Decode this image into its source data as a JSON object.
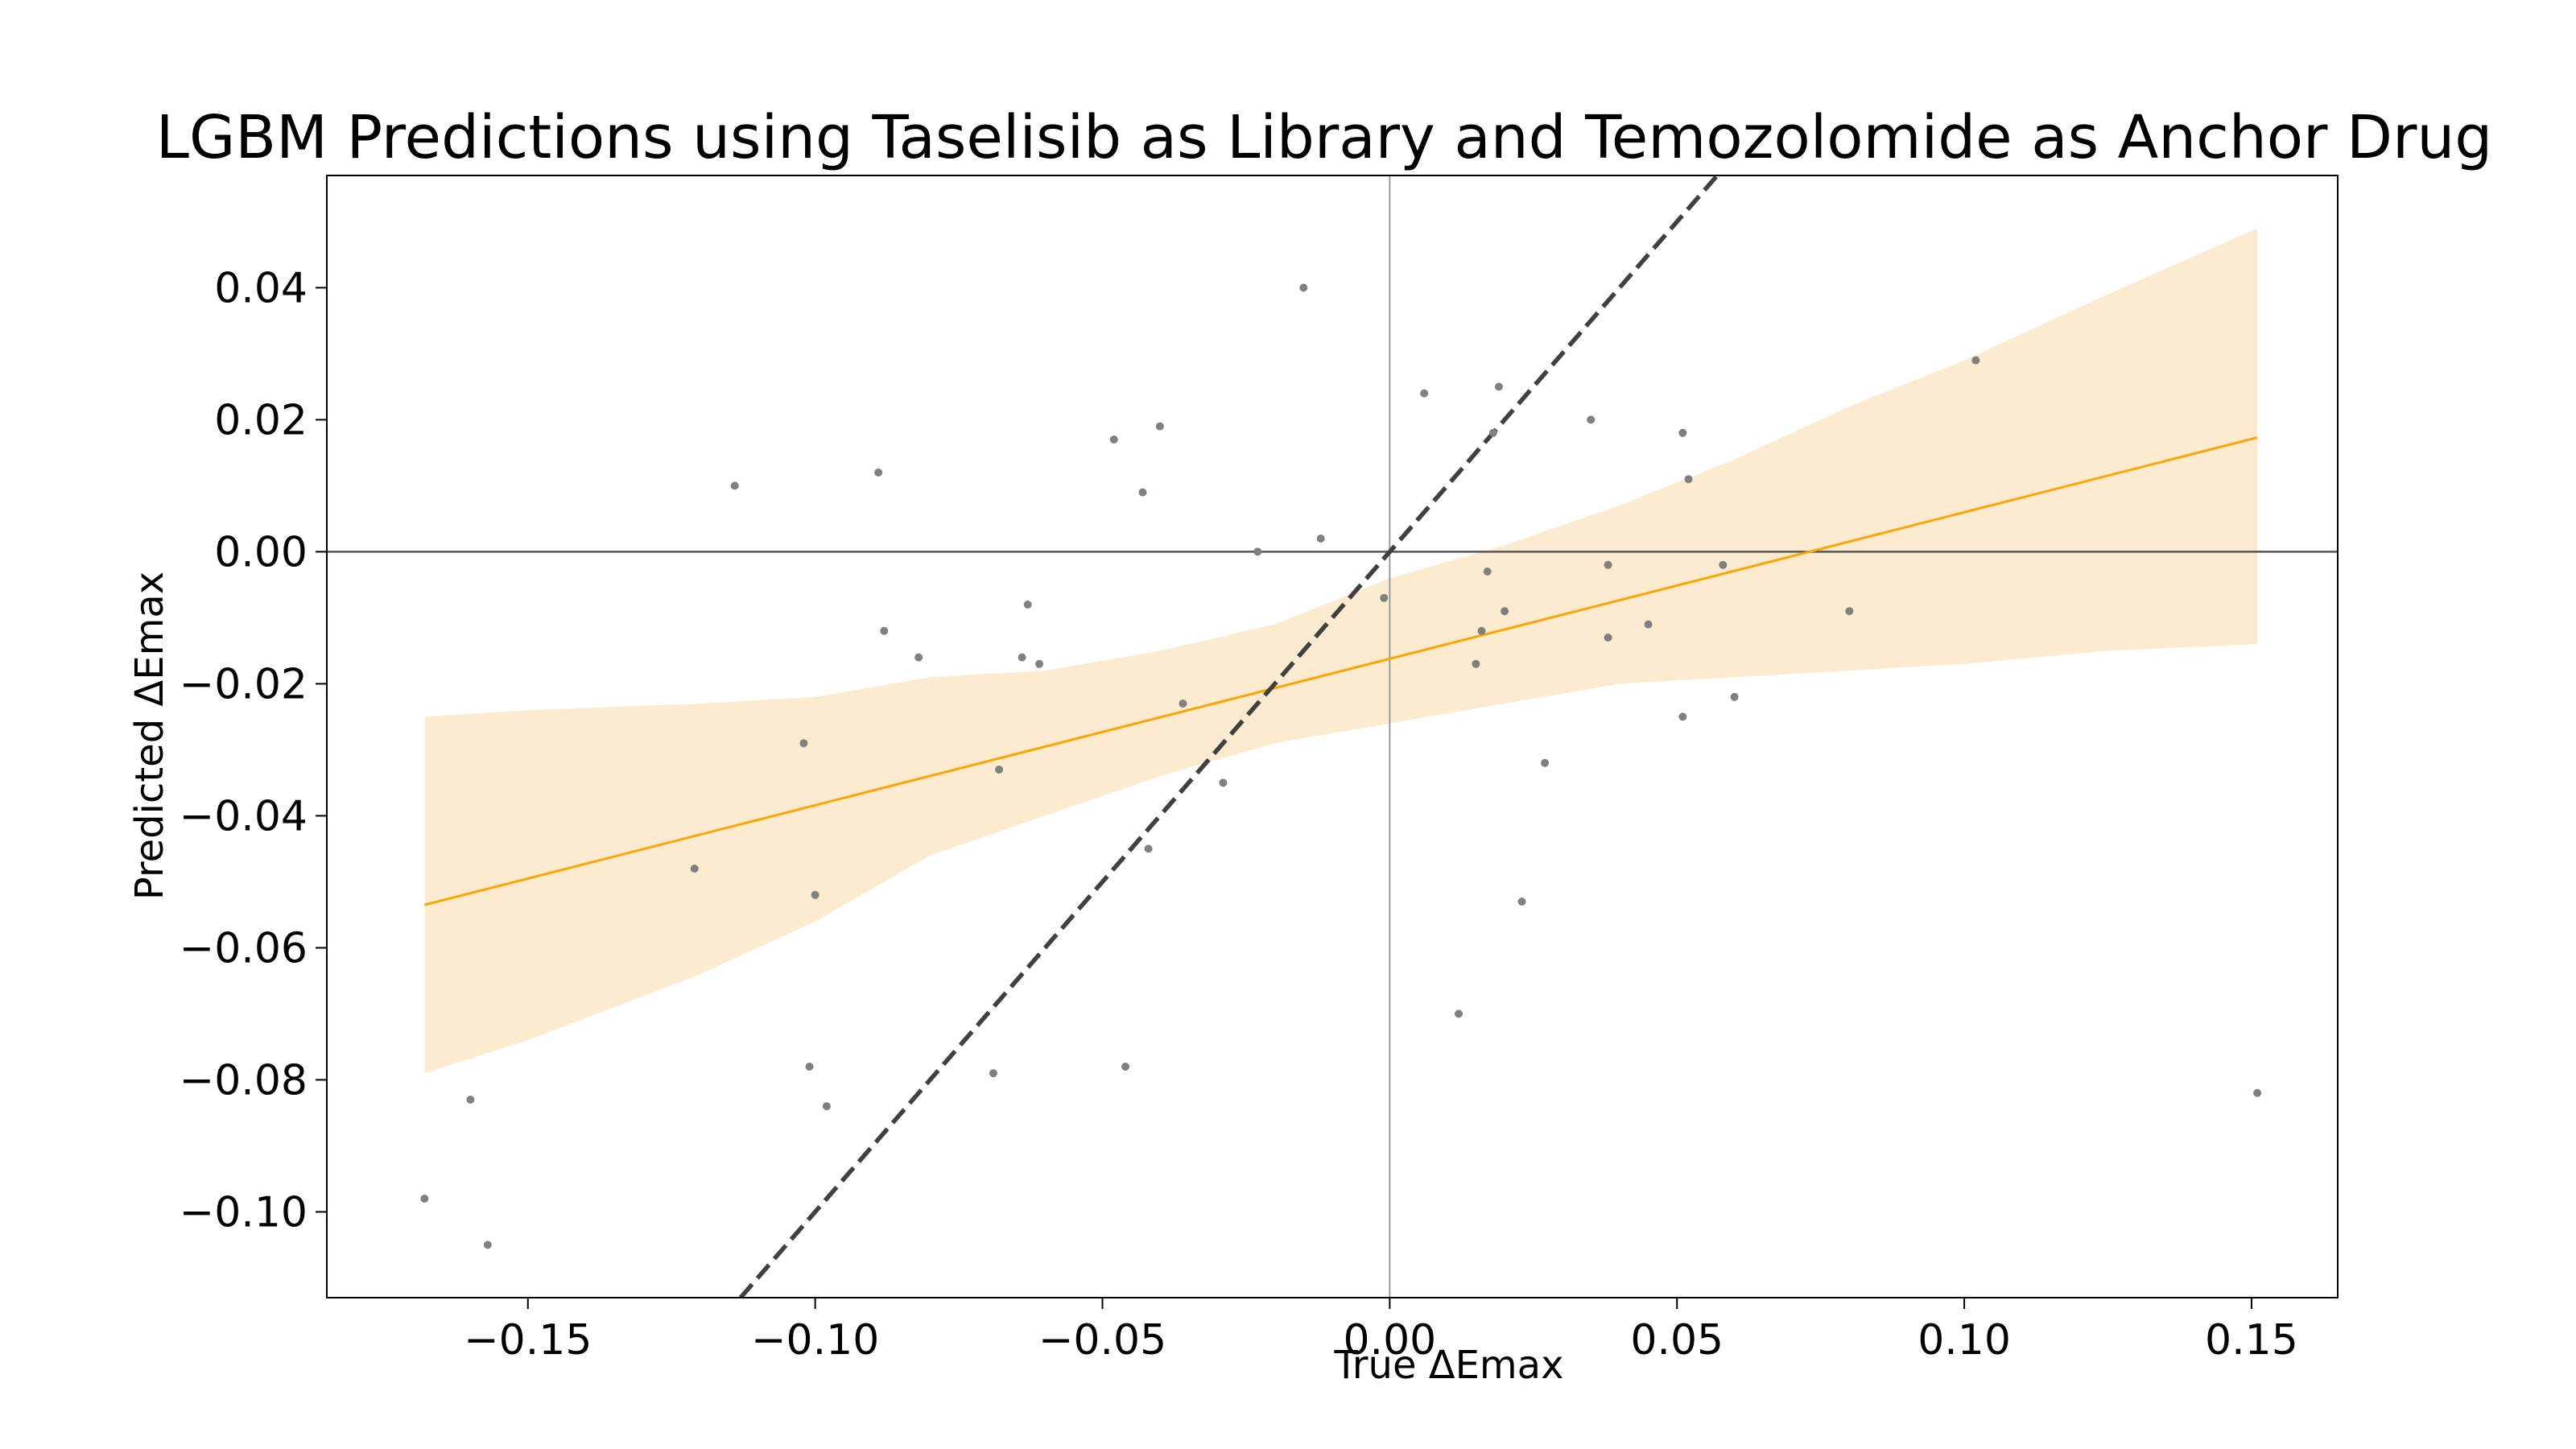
{
  "chart_data": {
    "type": "scatter",
    "title": "LGBM Predictions using Taselisib as Library and Temozolomide as Anchor Drug",
    "xlabel": "True ΔEmax",
    "ylabel": "Predicted ΔEmax",
    "xlim": [
      -0.185,
      0.165
    ],
    "ylim": [
      -0.113,
      0.057
    ],
    "x_ticks": [
      -0.15,
      -0.1,
      -0.05,
      0.0,
      0.05,
      0.1,
      0.15
    ],
    "x_tick_labels": [
      "−0.15",
      "−0.10",
      "−0.05",
      "0.00",
      "0.05",
      "0.10",
      "0.15"
    ],
    "y_ticks": [
      -0.1,
      -0.08,
      -0.06,
      -0.04,
      -0.02,
      0.0,
      0.02,
      0.04
    ],
    "y_tick_labels": [
      "−0.10",
      "−0.08",
      "−0.06",
      "−0.04",
      "−0.02",
      "0.00",
      "0.02",
      "0.04"
    ],
    "grid": false,
    "legend": "none",
    "colors": {
      "points": "#808080",
      "regression_line": "#ffa500",
      "confidence_band": "#fdebd0",
      "identity_line": "#404040",
      "zero_lines": "#555555"
    },
    "points": [
      {
        "x": -0.168,
        "y": -0.098
      },
      {
        "x": -0.16,
        "y": -0.083
      },
      {
        "x": -0.157,
        "y": -0.105
      },
      {
        "x": -0.121,
        "y": -0.048
      },
      {
        "x": -0.114,
        "y": 0.01
      },
      {
        "x": -0.102,
        "y": -0.029
      },
      {
        "x": -0.101,
        "y": -0.078
      },
      {
        "x": -0.1,
        "y": -0.052
      },
      {
        "x": -0.098,
        "y": -0.084
      },
      {
        "x": -0.089,
        "y": 0.012
      },
      {
        "x": -0.088,
        "y": -0.012
      },
      {
        "x": -0.082,
        "y": -0.016
      },
      {
        "x": -0.069,
        "y": -0.079
      },
      {
        "x": -0.068,
        "y": -0.033
      },
      {
        "x": -0.064,
        "y": -0.016
      },
      {
        "x": -0.063,
        "y": -0.008
      },
      {
        "x": -0.061,
        "y": -0.017
      },
      {
        "x": -0.048,
        "y": 0.017
      },
      {
        "x": -0.046,
        "y": -0.078
      },
      {
        "x": -0.043,
        "y": 0.009
      },
      {
        "x": -0.042,
        "y": -0.045
      },
      {
        "x": -0.04,
        "y": 0.019
      },
      {
        "x": -0.036,
        "y": -0.023
      },
      {
        "x": -0.029,
        "y": -0.035
      },
      {
        "x": -0.023,
        "y": 0.0
      },
      {
        "x": -0.015,
        "y": 0.04
      },
      {
        "x": -0.012,
        "y": 0.002
      },
      {
        "x": -0.001,
        "y": -0.007
      },
      {
        "x": 0.006,
        "y": 0.024
      },
      {
        "x": 0.012,
        "y": -0.07
      },
      {
        "x": 0.015,
        "y": -0.017
      },
      {
        "x": 0.016,
        "y": -0.012
      },
      {
        "x": 0.017,
        "y": -0.003
      },
      {
        "x": 0.018,
        "y": 0.018
      },
      {
        "x": 0.019,
        "y": 0.025
      },
      {
        "x": 0.02,
        "y": -0.009
      },
      {
        "x": 0.023,
        "y": -0.053
      },
      {
        "x": 0.027,
        "y": -0.032
      },
      {
        "x": 0.035,
        "y": 0.02
      },
      {
        "x": 0.038,
        "y": -0.002
      },
      {
        "x": 0.038,
        "y": -0.013
      },
      {
        "x": 0.045,
        "y": -0.011
      },
      {
        "x": 0.051,
        "y": -0.025
      },
      {
        "x": 0.051,
        "y": 0.018
      },
      {
        "x": 0.052,
        "y": 0.011
      },
      {
        "x": 0.058,
        "y": -0.002
      },
      {
        "x": 0.06,
        "y": -0.022
      },
      {
        "x": 0.08,
        "y": -0.009
      },
      {
        "x": 0.102,
        "y": 0.029
      },
      {
        "x": 0.151,
        "y": -0.082
      }
    ],
    "regression_line": {
      "x": [
        -0.168,
        0.151
      ],
      "y": [
        -0.0535,
        0.0173
      ]
    },
    "confidence_band": [
      {
        "x": -0.168,
        "lower": -0.079,
        "upper": -0.025
      },
      {
        "x": -0.15,
        "lower": -0.074,
        "upper": -0.024
      },
      {
        "x": -0.12,
        "lower": -0.064,
        "upper": -0.023
      },
      {
        "x": -0.1,
        "lower": -0.056,
        "upper": -0.022
      },
      {
        "x": -0.08,
        "lower": -0.046,
        "upper": -0.019
      },
      {
        "x": -0.06,
        "lower": -0.04,
        "upper": -0.018
      },
      {
        "x": -0.04,
        "lower": -0.034,
        "upper": -0.015
      },
      {
        "x": -0.02,
        "lower": -0.029,
        "upper": -0.011
      },
      {
        "x": 0.0,
        "lower": -0.026,
        "upper": -0.004
      },
      {
        "x": 0.02,
        "lower": -0.023,
        "upper": 0.001
      },
      {
        "x": 0.04,
        "lower": -0.02,
        "upper": 0.007
      },
      {
        "x": 0.06,
        "lower": -0.019,
        "upper": 0.014
      },
      {
        "x": 0.08,
        "lower": -0.018,
        "upper": 0.022
      },
      {
        "x": 0.1,
        "lower": -0.017,
        "upper": 0.029
      },
      {
        "x": 0.125,
        "lower": -0.015,
        "upper": 0.039
      },
      {
        "x": 0.151,
        "lower": -0.014,
        "upper": 0.049
      }
    ],
    "identity_line": {
      "x": [
        -0.113,
        0.057
      ],
      "y": [
        -0.113,
        0.057
      ]
    }
  }
}
